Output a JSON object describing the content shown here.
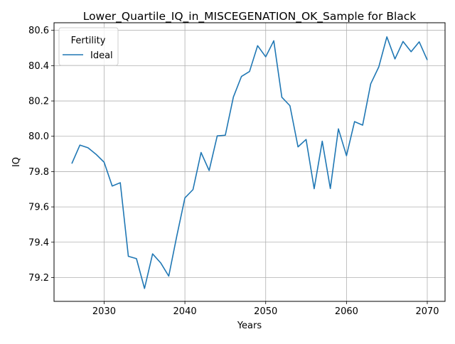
{
  "chart_data": {
    "type": "line",
    "title": "Lower_Quartile_IQ_in_MISCEGENATION_OK_Sample for Black",
    "xlabel": "Years",
    "ylabel": "IQ",
    "xlim": [
      2023.8,
      2072.2
    ],
    "ylim": [
      79.065,
      80.643
    ],
    "xticks": [
      2030,
      2040,
      2050,
      2060,
      2070
    ],
    "yticks": [
      79.2,
      79.4,
      79.6,
      79.8,
      80.0,
      80.2,
      80.4,
      80.6
    ],
    "grid": true,
    "legend": {
      "title": "Fertility",
      "placement": "top-left"
    },
    "series": [
      {
        "name": "Ideal",
        "color": "#1f77b4",
        "x": [
          2026,
          2027,
          2028,
          2029,
          2030,
          2031,
          2032,
          2033,
          2034,
          2035,
          2036,
          2037,
          2038,
          2039,
          2040,
          2041,
          2042,
          2043,
          2044,
          2045,
          2046,
          2047,
          2048,
          2049,
          2050,
          2051,
          2052,
          2053,
          2054,
          2055,
          2056,
          2057,
          2058,
          2059,
          2060,
          2061,
          2062,
          2063,
          2064,
          2065,
          2066,
          2067,
          2068,
          2069,
          2070
        ],
        "values": [
          79.845,
          79.95,
          79.935,
          79.898,
          79.853,
          79.718,
          79.737,
          79.32,
          79.307,
          79.138,
          79.334,
          79.283,
          79.208,
          79.436,
          79.651,
          79.698,
          79.908,
          79.806,
          80.002,
          80.006,
          80.222,
          80.339,
          80.367,
          80.513,
          80.45,
          80.541,
          80.221,
          80.173,
          79.94,
          79.982,
          79.703,
          79.972,
          79.704,
          80.042,
          79.89,
          80.083,
          80.063,
          80.297,
          80.393,
          80.563,
          80.438,
          80.537,
          80.479,
          80.535,
          80.432
        ]
      }
    ]
  }
}
